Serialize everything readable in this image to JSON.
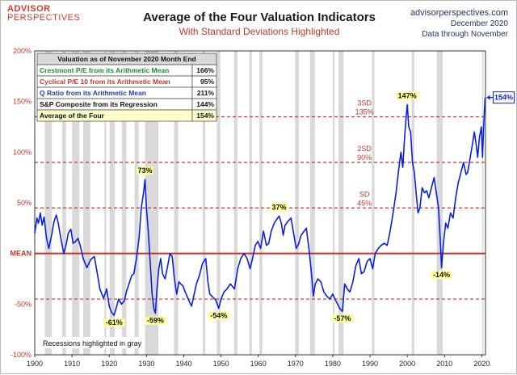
{
  "header": {
    "logo_top": "ADVISOR",
    "logo_bottom": "PERSPECTIVES",
    "title": "Average of the Four Valuation Indicators",
    "subtitle": "With Standard Deviations Highlighted",
    "site_url": "advisorperspectives.com",
    "site_date": "December 2020",
    "site_through": "Data through November"
  },
  "colors": {
    "series": "#0a1ee6",
    "mean_line": "#c0392b",
    "sd_line": "#c0392b",
    "recession_band": "#d9d9d9",
    "label_highlight": "#ffff99"
  },
  "legend_table": {
    "header": "Valuation as of November 2020 Month End",
    "rows": [
      {
        "label": "Crestmont P/E from its Arithmetic Mean",
        "value": "166%",
        "color": "#1e8c3a",
        "bg": "#ffffff"
      },
      {
        "label": "Cyclical P/E 10 from its Arithmetic Mean",
        "value": "95%",
        "color": "#c0392b",
        "bg": "#ffffff"
      },
      {
        "label": "Q Ratio from its Arithmetic Mean",
        "value": "211%",
        "color": "#1f3fa8",
        "bg": "#ffffff"
      },
      {
        "label": "S&P Composite from its Regression",
        "value": "144%",
        "color": "#111111",
        "bg": "#ffffff"
      },
      {
        "label": "Average of the Four",
        "value": "154%",
        "color": "#111111",
        "bg": "#ffffcc"
      }
    ]
  },
  "chart_data": {
    "type": "line",
    "title": "Average of the Four Valuation Indicators",
    "subtitle": "With Standard Deviations Highlighted",
    "xlim": [
      1900,
      2021
    ],
    "ylim": [
      -100,
      200
    ],
    "x_ticks": [
      1900,
      1910,
      1920,
      1930,
      1940,
      1950,
      1960,
      1970,
      1980,
      1990,
      2000,
      2010,
      2020
    ],
    "x_tick_labels": [
      "1900",
      "1910",
      "1920",
      "1930",
      "1940",
      "1950",
      "1960",
      "1970",
      "1980",
      "1990",
      "2000",
      "2010",
      "2020"
    ],
    "y_ticks": [
      -100,
      -50,
      0,
      50,
      100,
      150,
      200
    ],
    "y_tick_labels": [
      "-100%",
      "-50%",
      "MEAN",
      "50%",
      "100%",
      "150%",
      "200%"
    ],
    "reference_lines": [
      {
        "y": 0,
        "label": "",
        "style": "solid"
      },
      {
        "y": 45,
        "label_top": "SD",
        "label_bottom": "45%",
        "style": "dashed"
      },
      {
        "y": 90,
        "label_top": "2SD",
        "label_bottom": "90%",
        "style": "dashed"
      },
      {
        "y": 135,
        "label_top": "3SD",
        "label_bottom": "135%",
        "style": "dashed"
      },
      {
        "y": -45,
        "label_top": "",
        "label_bottom": "",
        "style": "dashed"
      }
    ],
    "recessions": [
      [
        1902.7,
        1904.6
      ],
      [
        1907.4,
        1908.4
      ],
      [
        1910.0,
        1912.0
      ],
      [
        1913.0,
        1914.9
      ],
      [
        1918.7,
        1919.2
      ],
      [
        1920.1,
        1921.5
      ],
      [
        1923.4,
        1924.6
      ],
      [
        1926.8,
        1927.9
      ],
      [
        1929.6,
        1933.2
      ],
      [
        1937.4,
        1938.5
      ],
      [
        1945.1,
        1945.8
      ],
      [
        1948.9,
        1949.8
      ],
      [
        1953.5,
        1954.4
      ],
      [
        1957.6,
        1958.3
      ],
      [
        1960.3,
        1961.1
      ],
      [
        1969.9,
        1970.9
      ],
      [
        1973.9,
        1975.2
      ],
      [
        1980.0,
        1980.5
      ],
      [
        1981.5,
        1982.9
      ],
      [
        1990.5,
        1991.2
      ],
      [
        2001.2,
        2001.9
      ],
      [
        2007.9,
        2009.5
      ],
      [
        2020.1,
        2020.4
      ]
    ],
    "series": [
      {
        "name": "Average of the Four",
        "points": [
          [
            1900.0,
            20
          ],
          [
            1900.6,
            35
          ],
          [
            1901.0,
            30
          ],
          [
            1901.5,
            40
          ],
          [
            1902.0,
            28
          ],
          [
            1902.5,
            36
          ],
          [
            1903.2,
            14
          ],
          [
            1903.8,
            5
          ],
          [
            1904.5,
            18
          ],
          [
            1905.2,
            32
          ],
          [
            1905.8,
            38
          ],
          [
            1906.3,
            30
          ],
          [
            1907.0,
            15
          ],
          [
            1907.8,
            0
          ],
          [
            1908.5,
            10
          ],
          [
            1909.0,
            20
          ],
          [
            1909.7,
            24
          ],
          [
            1910.3,
            10
          ],
          [
            1911.0,
            12
          ],
          [
            1911.6,
            15
          ],
          [
            1912.2,
            8
          ],
          [
            1913.0,
            -5
          ],
          [
            1914.0,
            -14
          ],
          [
            1915.0,
            -6
          ],
          [
            1916.0,
            -3
          ],
          [
            1916.8,
            -20
          ],
          [
            1917.5,
            -35
          ],
          [
            1918.0,
            -40
          ],
          [
            1918.5,
            -44
          ],
          [
            1919.3,
            -35
          ],
          [
            1920.0,
            -52
          ],
          [
            1920.6,
            -58
          ],
          [
            1921.3,
            -61
          ],
          [
            1922.0,
            -52
          ],
          [
            1922.5,
            -45
          ],
          [
            1923.3,
            -50
          ],
          [
            1924.0,
            -47
          ],
          [
            1924.6,
            -38
          ],
          [
            1925.3,
            -30
          ],
          [
            1926.0,
            -22
          ],
          [
            1926.6,
            -20
          ],
          [
            1927.3,
            -5
          ],
          [
            1928.0,
            15
          ],
          [
            1928.6,
            45
          ],
          [
            1929.2,
            60
          ],
          [
            1929.6,
            73
          ],
          [
            1930.0,
            45
          ],
          [
            1930.5,
            20
          ],
          [
            1931.0,
            -10
          ],
          [
            1931.5,
            -40
          ],
          [
            1932.0,
            -55
          ],
          [
            1932.4,
            -59
          ],
          [
            1932.8,
            -35
          ],
          [
            1933.3,
            -15
          ],
          [
            1933.8,
            -5
          ],
          [
            1934.3,
            -20
          ],
          [
            1935.0,
            -25
          ],
          [
            1935.7,
            -12
          ],
          [
            1936.3,
            0
          ],
          [
            1936.9,
            -3
          ],
          [
            1937.5,
            -25
          ],
          [
            1938.1,
            -40
          ],
          [
            1938.7,
            -28
          ],
          [
            1939.2,
            -30
          ],
          [
            1939.8,
            -32
          ],
          [
            1940.4,
            -38
          ],
          [
            1941.2,
            -45
          ],
          [
            1942.1,
            -52
          ],
          [
            1942.8,
            -40
          ],
          [
            1943.4,
            -30
          ],
          [
            1944.2,
            -22
          ],
          [
            1945.0,
            -10
          ],
          [
            1945.9,
            -5
          ],
          [
            1946.5,
            -28
          ],
          [
            1947.0,
            -40
          ],
          [
            1947.8,
            -43
          ],
          [
            1948.6,
            -46
          ],
          [
            1949.4,
            -54
          ],
          [
            1950.0,
            -45
          ],
          [
            1950.8,
            -38
          ],
          [
            1951.6,
            -35
          ],
          [
            1952.5,
            -30
          ],
          [
            1953.6,
            -35
          ],
          [
            1954.5,
            -15
          ],
          [
            1955.3,
            -5
          ],
          [
            1956.2,
            0
          ],
          [
            1957.0,
            -5
          ],
          [
            1957.8,
            -15
          ],
          [
            1958.4,
            -6
          ],
          [
            1959.2,
            8
          ],
          [
            1959.9,
            12
          ],
          [
            1960.6,
            5
          ],
          [
            1961.4,
            22
          ],
          [
            1962.2,
            8
          ],
          [
            1962.8,
            10
          ],
          [
            1963.5,
            22
          ],
          [
            1964.3,
            30
          ],
          [
            1965.0,
            34
          ],
          [
            1965.6,
            37
          ],
          [
            1966.2,
            30
          ],
          [
            1966.7,
            18
          ],
          [
            1967.2,
            28
          ],
          [
            1968.0,
            32
          ],
          [
            1968.8,
            35
          ],
          [
            1969.4,
            22
          ],
          [
            1970.2,
            5
          ],
          [
            1970.9,
            10
          ],
          [
            1971.5,
            18
          ],
          [
            1972.3,
            22
          ],
          [
            1972.9,
            25
          ],
          [
            1973.6,
            5
          ],
          [
            1974.3,
            -20
          ],
          [
            1974.8,
            -42
          ],
          [
            1975.3,
            -30
          ],
          [
            1976.0,
            -25
          ],
          [
            1976.8,
            -28
          ],
          [
            1977.6,
            -38
          ],
          [
            1978.4,
            -42
          ],
          [
            1979.2,
            -45
          ],
          [
            1980.0,
            -40
          ],
          [
            1980.6,
            -45
          ],
          [
            1981.3,
            -50
          ],
          [
            1982.0,
            -55
          ],
          [
            1982.6,
            -57
          ],
          [
            1983.2,
            -30
          ],
          [
            1983.9,
            -35
          ],
          [
            1984.6,
            -38
          ],
          [
            1985.4,
            -28
          ],
          [
            1986.2,
            -12
          ],
          [
            1987.0,
            -5
          ],
          [
            1987.7,
            -20
          ],
          [
            1988.4,
            -18
          ],
          [
            1989.2,
            -8
          ],
          [
            1990.0,
            -5
          ],
          [
            1990.7,
            -15
          ],
          [
            1991.4,
            0
          ],
          [
            1992.2,
            5
          ],
          [
            1993.0,
            8
          ],
          [
            1993.8,
            10
          ],
          [
            1994.6,
            8
          ],
          [
            1995.4,
            22
          ],
          [
            1996.2,
            40
          ],
          [
            1997.0,
            60
          ],
          [
            1997.6,
            80
          ],
          [
            1998.3,
            100
          ],
          [
            1998.8,
            85
          ],
          [
            1999.3,
            115
          ],
          [
            1999.7,
            135
          ],
          [
            2000.0,
            147
          ],
          [
            2000.4,
            125
          ],
          [
            2000.9,
            120
          ],
          [
            2001.4,
            90
          ],
          [
            2001.9,
            80
          ],
          [
            2002.5,
            55
          ],
          [
            2002.9,
            40
          ],
          [
            2003.4,
            45
          ],
          [
            2004.0,
            65
          ],
          [
            2004.6,
            60
          ],
          [
            2005.2,
            62
          ],
          [
            2005.8,
            55
          ],
          [
            2006.5,
            65
          ],
          [
            2007.2,
            75
          ],
          [
            2007.8,
            60
          ],
          [
            2008.4,
            45
          ],
          [
            2008.9,
            10
          ],
          [
            2009.2,
            -14
          ],
          [
            2009.7,
            10
          ],
          [
            2010.3,
            30
          ],
          [
            2010.9,
            25
          ],
          [
            2011.6,
            40
          ],
          [
            2012.3,
            35
          ],
          [
            2013.0,
            55
          ],
          [
            2013.7,
            70
          ],
          [
            2014.4,
            80
          ],
          [
            2015.1,
            90
          ],
          [
            2015.8,
            78
          ],
          [
            2016.2,
            80
          ],
          [
            2016.9,
            95
          ],
          [
            2017.6,
            110
          ],
          [
            2018.0,
            120
          ],
          [
            2018.6,
            105
          ],
          [
            2018.9,
            95
          ],
          [
            2019.4,
            115
          ],
          [
            2019.9,
            125
          ],
          [
            2020.2,
            95
          ],
          [
            2020.5,
            125
          ],
          [
            2020.9,
            154
          ]
        ]
      }
    ],
    "annotations": [
      {
        "x": 1929.6,
        "y": 73,
        "text": "73%",
        "position": "above"
      },
      {
        "x": 1921.3,
        "y": -61,
        "text": "-61%",
        "position": "below"
      },
      {
        "x": 1932.4,
        "y": -59,
        "text": "-59%",
        "position": "below"
      },
      {
        "x": 1949.4,
        "y": -54,
        "text": "-54%",
        "position": "below"
      },
      {
        "x": 1965.6,
        "y": 37,
        "text": "37%",
        "position": "above"
      },
      {
        "x": 1982.6,
        "y": -57,
        "text": "-57%",
        "position": "below"
      },
      {
        "x": 2000.0,
        "y": 147,
        "text": "147%",
        "position": "above"
      },
      {
        "x": 2009.2,
        "y": -14,
        "text": "-14%",
        "position": "below"
      }
    ],
    "latest_label": {
      "x": 2020.9,
      "y": 154,
      "text": "154%"
    },
    "recession_note": "Recessions highlighted in gray",
    "grid": false,
    "legend": "top-left"
  }
}
